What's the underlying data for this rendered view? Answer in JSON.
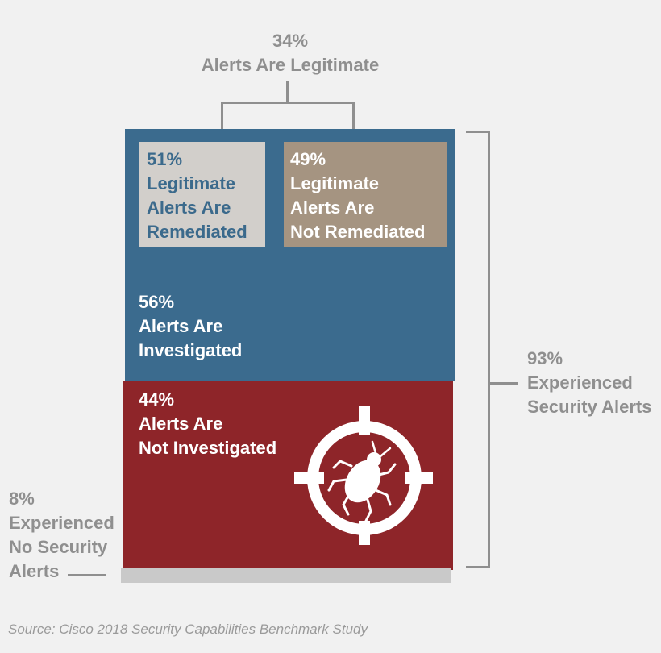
{
  "chart_data": {
    "type": "table",
    "segments": [
      {
        "value": "34%",
        "label": [
          "Alerts Are Legitimate"
        ]
      },
      {
        "value": "51%",
        "label": [
          "Legitimate",
          "Alerts Are",
          "Remediated"
        ]
      },
      {
        "value": "49%",
        "label": [
          "Legitimate",
          "Alerts Are",
          "Not Remediated"
        ]
      },
      {
        "value": "56%",
        "label": [
          "Alerts Are",
          "Investigated"
        ]
      },
      {
        "value": "44%",
        "label": [
          "Alerts Are",
          "Not Investigated"
        ]
      },
      {
        "value": "93%",
        "label": [
          "Experienced",
          "Security Alerts"
        ]
      },
      {
        "value": "8%",
        "label": [
          "Experienced",
          "No Security",
          "Alerts"
        ]
      }
    ],
    "values_percent": {
      "legitimate": 34,
      "legitimate_remediated": 51,
      "legitimate_not_remediated": 49,
      "investigated": 56,
      "not_investigated": 44,
      "experienced_alerts": 93,
      "no_alerts": 8
    },
    "colors": {
      "investigated": "#3b6b8e",
      "not_investigated": "#8e2529",
      "remediated": "#d2cfcb",
      "not_remediated": "#a59481",
      "no_alerts": "#c9c9c9"
    },
    "icon": "bug-target-icon"
  },
  "source": "Source: Cisco 2018 Security Capabilities Benchmark Study"
}
